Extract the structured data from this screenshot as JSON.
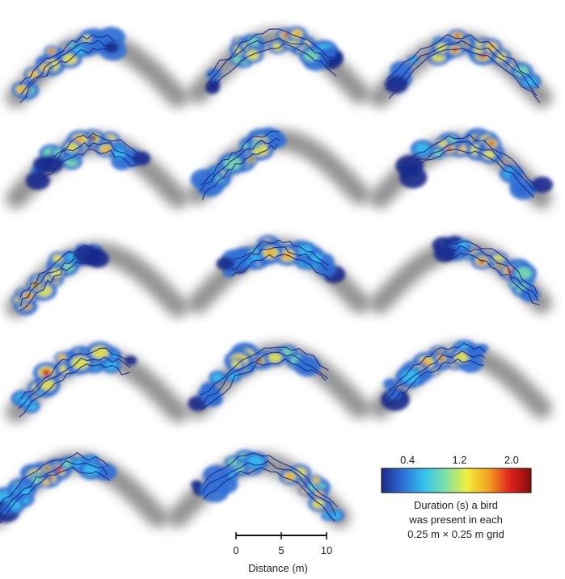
{
  "colors": {
    "shadow": "#3a3a3a",
    "contour": "#1f2a8c",
    "colormap": [
      "#1a2a8c",
      "#2f6fd6",
      "#33c3ee",
      "#7fe0a8",
      "#f2ee3a",
      "#f5a21e",
      "#e0241c",
      "#8b0a0a"
    ]
  },
  "legend": {
    "ticks": [
      {
        "label": "0.4",
        "value": 0.4
      },
      {
        "label": "1.2",
        "value": 1.2
      },
      {
        "label": "2.0",
        "value": 2.0
      }
    ],
    "range": [
      0.0,
      2.3
    ],
    "caption": [
      "Duration (s) a bird",
      "was present in each",
      "0.25 m × 0.25 m grid"
    ]
  },
  "scale_bar": {
    "ticks": [
      {
        "label": "0",
        "value": 0
      },
      {
        "label": "5",
        "value": 5
      },
      {
        "label": "10",
        "value": 10
      }
    ],
    "caption": "Distance (m)"
  },
  "panels": [
    {
      "hot_fraction": 0.15,
      "spread": 0.9
    },
    {
      "hot_fraction": 0.45,
      "spread": 0.8
    },
    {
      "hot_fraction": 0.55,
      "spread": 1.0
    },
    {
      "hot_fraction": 0.45,
      "spread": 0.6
    },
    {
      "hot_fraction": 0.25,
      "spread": 0.5
    },
    {
      "hot_fraction": 0.55,
      "spread": 0.8
    },
    {
      "hot_fraction": 0.12,
      "spread": 0.7
    },
    {
      "hot_fraction": 0.5,
      "spread": 0.6
    },
    {
      "hot_fraction": 0.7,
      "spread": 0.6
    },
    {
      "hot_fraction": 0.3,
      "spread": 0.8
    },
    {
      "hot_fraction": 0.4,
      "spread": 0.8
    },
    {
      "hot_fraction": 0.35,
      "spread": 0.6
    },
    {
      "hot_fraction": 0.35,
      "spread": 0.7
    },
    {
      "hot_fraction": 0.65,
      "spread": 1.0
    }
  ]
}
